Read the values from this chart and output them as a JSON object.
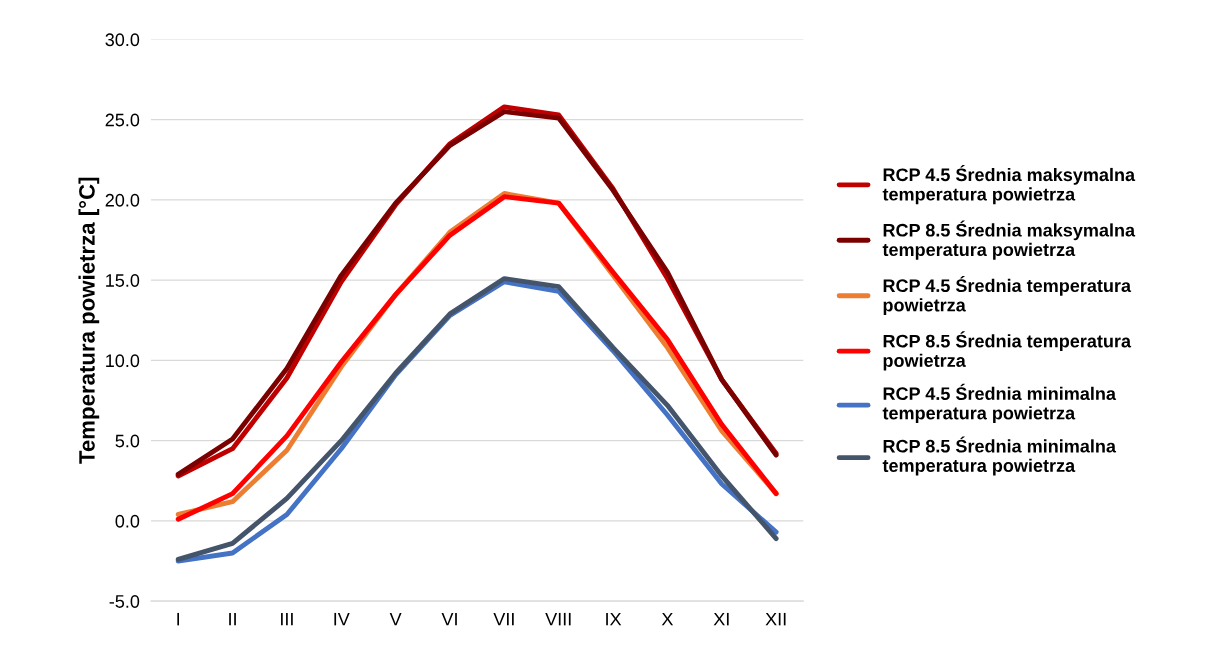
{
  "chart_data": {
    "type": "line",
    "ylabel": "Temperatura powietrza [°C]",
    "categories": [
      "I",
      "II",
      "III",
      "IV",
      "V",
      "VI",
      "VII",
      "VIII",
      "IX",
      "X",
      "XI",
      "XII"
    ],
    "series": [
      {
        "name": "RCP 4.5 Średnia maksymalna temperatura powietrza",
        "color": "#c00000",
        "values": [
          2.8,
          4.5,
          8.9,
          14.9,
          19.7,
          23.5,
          25.8,
          25.3,
          20.7,
          15.1,
          8.8,
          4.2
        ]
      },
      {
        "name": "RCP 8.5 Średnia maksymalna temperatura powietrza",
        "color": "#7b0000",
        "values": [
          2.9,
          5.1,
          9.5,
          15.3,
          19.8,
          23.4,
          25.5,
          25.1,
          20.6,
          15.5,
          8.8,
          4.1
        ]
      },
      {
        "name": "RCP 4.5 Średnia temperatura powietrza",
        "color": "#ed7d31",
        "values": [
          0.4,
          1.2,
          4.4,
          9.6,
          14.1,
          18.0,
          20.4,
          19.8,
          15.3,
          10.8,
          5.6,
          1.7
        ]
      },
      {
        "name": "RCP 8.5 Średnia temperatura powietrza",
        "color": "#ff0000",
        "values": [
          0.1,
          1.7,
          5.3,
          9.9,
          14.1,
          17.8,
          20.2,
          19.8,
          15.5,
          11.3,
          6.0,
          1.7
        ]
      },
      {
        "name": "RCP 4.5 Średnia minimalna temperatura powietrza",
        "color": "#4472c4",
        "values": [
          -2.5,
          -2.0,
          0.4,
          4.5,
          9.1,
          12.8,
          14.9,
          14.3,
          10.6,
          6.6,
          2.3,
          -0.7
        ]
      },
      {
        "name": "RCP 8.5 Średnia minimalna temperatura powietrza",
        "color": "#44546a",
        "values": [
          -2.4,
          -1.4,
          1.4,
          5.0,
          9.2,
          12.9,
          15.1,
          14.6,
          10.8,
          7.2,
          2.8,
          -1.1
        ]
      }
    ],
    "ylim": [
      -5,
      30
    ],
    "yticks": [
      {
        "value": -5,
        "label": "-5.0"
      },
      {
        "value": 0,
        "label": "0.0"
      },
      {
        "value": 5,
        "label": "5.0"
      },
      {
        "value": 10,
        "label": "10.0"
      },
      {
        "value": 15,
        "label": "15.0"
      },
      {
        "value": 20,
        "label": "20.0"
      },
      {
        "value": 25,
        "label": "25.0"
      },
      {
        "value": 30,
        "label": "30.0"
      }
    ],
    "grid": "y",
    "legend": "right",
    "marker": "none",
    "line_style": "solid"
  }
}
